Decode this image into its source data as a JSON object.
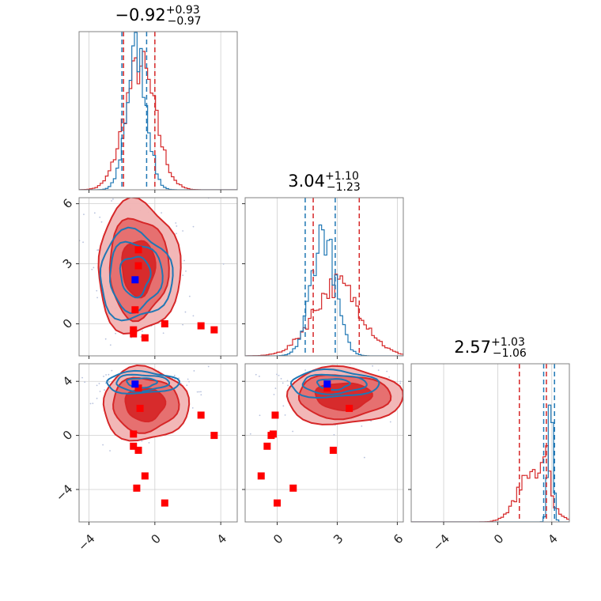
{
  "colors": {
    "model_a": "#1f77b4",
    "model_b": "#d62728",
    "truth_marker": "#0000ff",
    "points": "#ff0000"
  },
  "chart_data": {
    "type": "corner",
    "n_params": 3,
    "axis_ranges": [
      [
        -4.6,
        5.0
      ],
      [
        -1.6,
        6.3
      ],
      [
        -6.4,
        5.3
      ]
    ],
    "x_ticks": [
      [
        -4,
        0,
        4
      ],
      [
        0,
        3,
        6
      ],
      [
        -4,
        0,
        4
      ]
    ],
    "y_ticks": [
      null,
      [
        0,
        3,
        6
      ],
      [
        -4,
        0,
        4
      ]
    ],
    "x_tick_labels": [
      [
        "−4",
        "0",
        "4"
      ],
      [
        "0",
        "3",
        "6"
      ],
      [
        "−4",
        "0",
        "4"
      ]
    ],
    "y_tick_labels": [
      null,
      [
        "0",
        "3",
        "6"
      ],
      [
        "−4",
        "0",
        "4"
      ]
    ],
    "titles": [
      {
        "median": "−0.92",
        "plus": "+0.93",
        "minus": "−0.97"
      },
      {
        "median": "3.04",
        "plus": "+1.10",
        "minus": "−1.23"
      },
      {
        "median": "2.57",
        "plus": "+1.03",
        "minus": "−1.06"
      }
    ],
    "grid": true,
    "quantiles": {
      "blue": [
        [
          -2.0,
          -0.5
        ],
        [
          1.4,
          2.9
        ],
        [
          3.4,
          4.2
        ]
      ],
      "red": [
        [
          -1.9,
          0.0
        ],
        [
          1.8,
          4.1
        ],
        [
          1.6,
          3.6
        ]
      ]
    },
    "histograms": {
      "blue": [
        {
          "center": -1.1,
          "sigma": 0.6,
          "peak": 0.88
        },
        {
          "center": 2.3,
          "sigma": 0.6,
          "peak": 0.78
        },
        {
          "center": 3.9,
          "sigma": 0.18,
          "peak": 0.85
        }
      ],
      "red": [
        {
          "center": -0.9,
          "sigma": 0.95,
          "peak": 0.78
        },
        {
          "center": 3.0,
          "sigma": 1.2,
          "peak": 0.45
        },
        {
          "center": 2.6,
          "sigma": 1.05,
          "peak": 0.33,
          "extra_peak": {
            "center": 3.6,
            "sigma": 0.2,
            "peak": 0.35
          }
        }
      ]
    },
    "contours": {
      "1_0": {
        "blue": {
          "cx": -1.2,
          "cy": 2.4,
          "rx": [
            0.9,
            1.6,
            2.2
          ],
          "ry": [
            1.0,
            1.7,
            2.2
          ]
        },
        "red": {
          "cx": -1.0,
          "cy": 2.8,
          "rx": [
            1.0,
            1.8,
            2.5
          ],
          "ry": [
            1.4,
            2.5,
            3.3
          ]
        }
      },
      "2_0": {
        "blue": {
          "cx": -0.8,
          "cy": 3.9,
          "rx": [
            0.9,
            1.6,
            2.2
          ],
          "ry": [
            0.35,
            0.6,
            0.8
          ]
        },
        "red": {
          "cx": -0.6,
          "cy": 2.3,
          "rx": [
            1.2,
            2.0,
            2.6
          ],
          "ry": [
            1.2,
            2.0,
            2.7
          ]
        }
      },
      "2_1": {
        "blue": {
          "cx": 2.8,
          "cy": 3.8,
          "rx": [
            0.8,
            1.6,
            2.2
          ],
          "ry": [
            0.4,
            0.7,
            1.0
          ]
        },
        "red": {
          "cx": 3.3,
          "cy": 2.9,
          "rx": [
            1.4,
            2.3,
            2.9
          ],
          "ry": [
            1.0,
            1.6,
            2.1
          ]
        }
      }
    },
    "points": {
      "1_0": [
        [
          -1.0,
          3.7
        ],
        [
          -1.0,
          2.9
        ],
        [
          -1.2,
          0.7
        ],
        [
          -1.3,
          -0.3
        ],
        [
          -1.3,
          -0.5
        ],
        [
          -0.6,
          -0.7
        ],
        [
          0.6,
          0.0
        ],
        [
          2.8,
          -0.1
        ],
        [
          3.6,
          -0.3
        ]
      ],
      "2_0": [
        [
          -1.0,
          3.5
        ],
        [
          -0.9,
          2.0
        ],
        [
          -1.3,
          0.1
        ],
        [
          -1.3,
          -0.8
        ],
        [
          -1.0,
          -1.1
        ],
        [
          -0.6,
          -3.0
        ],
        [
          -1.1,
          -3.9
        ],
        [
          0.6,
          -5.0
        ],
        [
          2.8,
          1.5
        ],
        [
          3.6,
          0.0
        ]
      ],
      "2_1": [
        [
          2.5,
          3.5
        ],
        [
          3.6,
          2.0
        ],
        [
          -0.1,
          1.5
        ],
        [
          -0.2,
          0.1
        ],
        [
          -0.3,
          0.0
        ],
        [
          -0.5,
          -0.8
        ],
        [
          2.8,
          -1.1
        ],
        [
          -0.8,
          -3.0
        ],
        [
          0.8,
          -3.9
        ],
        [
          0.0,
          -5.0
        ]
      ]
    },
    "truth": {
      "1_0": [
        -1.2,
        2.2
      ],
      "2_0": [
        -1.2,
        3.8
      ],
      "2_1": [
        2.5,
        3.8
      ]
    }
  }
}
